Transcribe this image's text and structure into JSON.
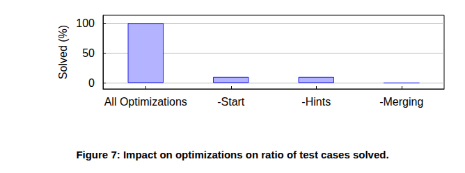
{
  "chart_data": {
    "type": "bar",
    "title": "Figure 7: Impact on optimizations on ratio of test cases solved.",
    "y_label": "Solved (%)",
    "categories": [
      "All Optimizations",
      "-Start",
      "-Hints",
      "-Merging"
    ],
    "values": [
      100,
      10,
      10,
      0
    ],
    "color": "#b3b3ff",
    "ylim": [
      -10,
      113
    ],
    "yticks": [
      0,
      50,
      100
    ],
    "grid": true
  }
}
